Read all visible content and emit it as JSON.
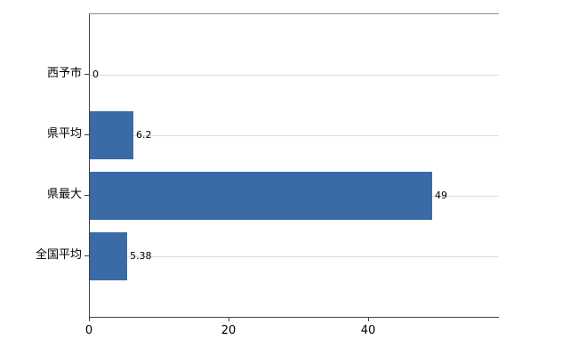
{
  "chart_data": {
    "type": "bar",
    "orientation": "horizontal",
    "title": "",
    "xlabel": "",
    "ylabel": "",
    "categories": [
      "西予市",
      "県平均",
      "県最大",
      "全国平均"
    ],
    "values": [
      0,
      6.2,
      49,
      5.38
    ],
    "value_labels": [
      "0",
      "6.2",
      "49",
      "5.38"
    ],
    "xlim": [
      0,
      58.6
    ],
    "x_ticks": [
      0,
      20,
      40
    ],
    "grid": true,
    "legend": "none",
    "colors": {
      "bar": "#3a6ba6",
      "gridline": "#dcdcdc",
      "axis": "#404040",
      "text": "#000000",
      "background": "#ffffff"
    }
  }
}
